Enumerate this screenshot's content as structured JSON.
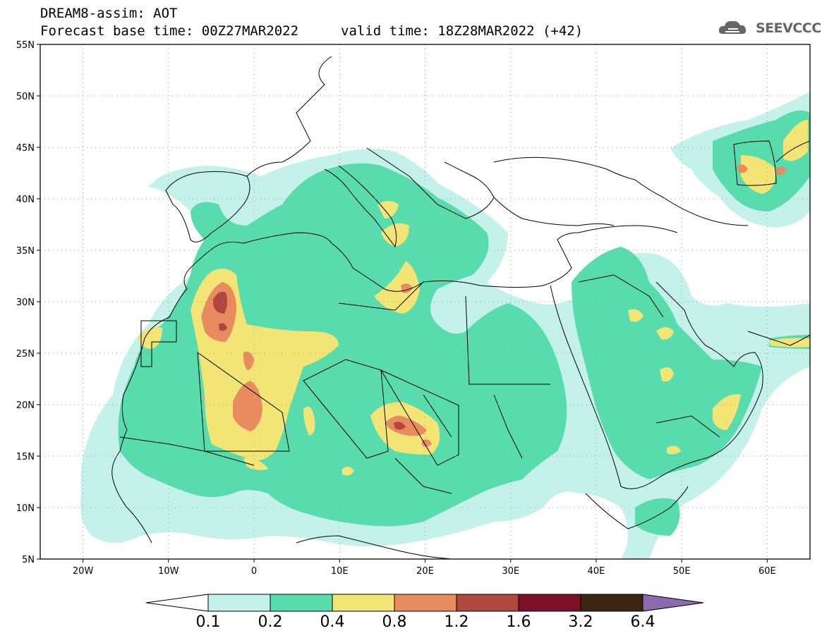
{
  "header": {
    "line1": "DREAM8-assim: AOT",
    "line2": "Forecast base time: 00Z27MAR2022",
    "valid": "valid time: 18Z28MAR2022 (+42)",
    "logo_text": "SEEVCCC"
  },
  "map": {
    "lat_labels": [
      "55N",
      "50N",
      "45N",
      "40N",
      "35N",
      "30N",
      "25N",
      "20N",
      "15N",
      "10N",
      "5N"
    ],
    "lat_values": [
      55,
      50,
      45,
      40,
      35,
      30,
      25,
      20,
      15,
      10,
      5
    ],
    "lon_labels": [
      "20W",
      "10W",
      "0",
      "10E",
      "20E",
      "30E",
      "40E",
      "50E",
      "60E"
    ],
    "lon_values": [
      -20,
      -10,
      0,
      10,
      20,
      30,
      40,
      50,
      60
    ],
    "extent": {
      "lon_min": -25,
      "lon_max": 65,
      "lat_min": 5,
      "lat_max": 55
    },
    "colors": {
      "c01": "#c4f1ea",
      "c02": "#58dcae",
      "c04": "#f3e476",
      "c08": "#e88c60",
      "c12": "#b0473e",
      "c16": "#7d0f28",
      "c32": "#3b2612",
      "c64": "#8a6bb0"
    }
  },
  "colorbar": {
    "labels": [
      "0.1",
      "0.2",
      "0.4",
      "0.8",
      "1.2",
      "1.6",
      "3.2",
      "6.4"
    ],
    "colors": [
      "#c4f1ea",
      "#58dcae",
      "#f3e476",
      "#e88c60",
      "#b0473e",
      "#7d0f28",
      "#3b2612"
    ],
    "low_color": "#ffffff",
    "high_color": "#8a6bb0"
  }
}
